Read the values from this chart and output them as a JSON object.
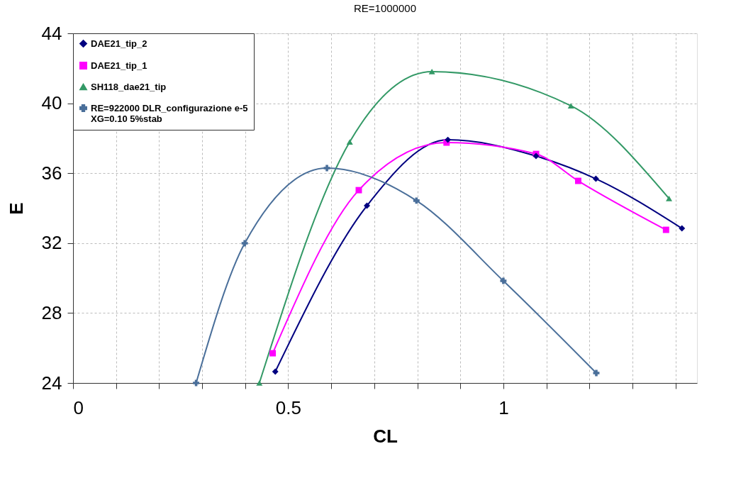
{
  "chart_data": {
    "type": "line",
    "title": "RE=1000000",
    "xlabel": "CL",
    "ylabel": "E",
    "xlim": [
      0,
      1.45
    ],
    "ylim": [
      24,
      44
    ],
    "xticks": [
      0,
      {
        "value": 0.1,
        "label": null
      },
      {
        "value": 0.2,
        "label": null
      },
      {
        "value": 0.3,
        "label": null
      },
      {
        "value": 0.4,
        "label": null
      },
      0.5,
      {
        "value": 0.6,
        "label": null
      },
      {
        "value": 0.7,
        "label": null
      },
      {
        "value": 0.8,
        "label": null
      },
      {
        "value": 0.9,
        "label": null
      },
      1,
      {
        "value": 1.1,
        "label": null
      },
      {
        "value": 1.2,
        "label": null
      },
      {
        "value": 1.3,
        "label": null
      },
      {
        "value": 1.4,
        "label": null
      }
    ],
    "yticks": [
      24,
      28,
      32,
      36,
      40,
      44
    ],
    "grid": true,
    "legend": "top left",
    "line_style": "solid",
    "series": [
      {
        "name": "DAE21_tip_2",
        "color": "#000080",
        "marker": "diamond",
        "x": [
          0.47,
          0.683,
          0.871,
          1.076,
          1.215,
          1.415
        ],
        "values": [
          24.65,
          34.14,
          37.91,
          36.98,
          35.68,
          32.84
        ]
      },
      {
        "name": "DAE21_tip_1",
        "color": "#ff00ff",
        "marker": "square",
        "x": [
          0.464,
          0.664,
          0.868,
          1.076,
          1.174,
          1.378
        ],
        "values": [
          25.7,
          35.03,
          37.75,
          37.1,
          35.56,
          32.76
        ]
      },
      {
        "name": "SH118_dae21_tip",
        "color": "#339966",
        "marker": "triangle",
        "x": [
          0.433,
          0.643,
          0.834,
          1.157,
          1.385
        ],
        "values": [
          24.0,
          37.79,
          41.81,
          39.86,
          34.55
        ]
      },
      {
        "name": "RE=922000 DLR_configurazione e-5\nXG=0.10 5%stab",
        "color": "#4a6f9a",
        "marker": "cross",
        "x": [
          0.286,
          0.399,
          0.59,
          0.798,
          1.0,
          1.216
        ],
        "values": [
          24.0,
          31.99,
          36.29,
          34.43,
          29.84,
          24.57
        ]
      }
    ]
  }
}
